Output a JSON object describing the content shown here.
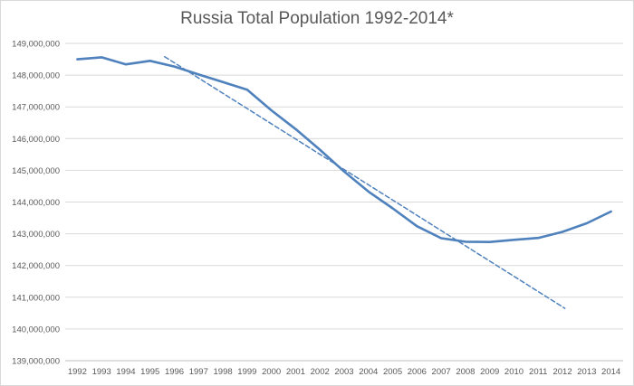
{
  "chart_data": {
    "type": "line",
    "title": "Russia Total Population 1992-2014*",
    "xlabel": "",
    "ylabel": "",
    "x": [
      "1992",
      "1993",
      "1994",
      "1995",
      "1996",
      "1997",
      "1998",
      "1999",
      "2000",
      "2001",
      "2002",
      "2003",
      "2004",
      "2005",
      "2006",
      "2007",
      "2008",
      "2009",
      "2010",
      "2011",
      "2012",
      "2013",
      "2014"
    ],
    "ylim": [
      139000000,
      149000000
    ],
    "y_ticks": [
      "139,000,000",
      "140,000,000",
      "141,000,000",
      "142,000,000",
      "143,000,000",
      "144,000,000",
      "145,000,000",
      "146,000,000",
      "147,000,000",
      "148,000,000",
      "149,000,000"
    ],
    "grid": true,
    "legend": "none",
    "series": [
      {
        "values": [
          148500000,
          148560000,
          148340000,
          148450000,
          148270000,
          148020000,
          147780000,
          147540000,
          146890000,
          146300000,
          145650000,
          144960000,
          144330000,
          143800000,
          143240000,
          142860000,
          142750000,
          142740000,
          142810000,
          142870000,
          143060000,
          143330000,
          143700000
        ],
        "color": "#4f81bd",
        "style": "solid"
      },
      {
        "values_at_x": [
          [
            1995.6,
            148580000
          ],
          [
            2012.1,
            140650000
          ]
        ],
        "color": "#4f81bd",
        "style": "dashed",
        "role": "trendline"
      }
    ]
  }
}
